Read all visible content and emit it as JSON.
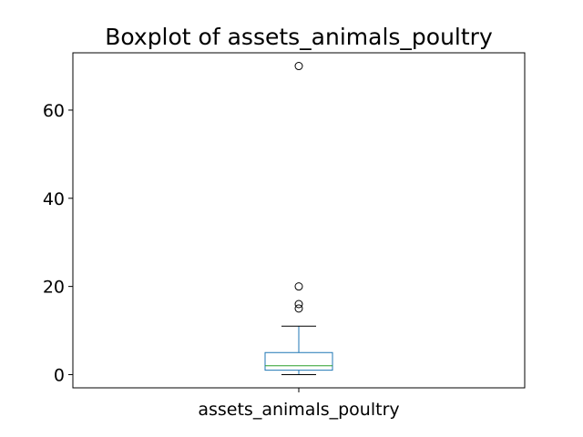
{
  "chart_data": {
    "type": "box",
    "title": "Boxplot of assets_animals_poultry",
    "xlabel": "",
    "ylabel": "",
    "categories": [
      "assets_animals_poultry"
    ],
    "ylim": [
      -3,
      73
    ],
    "yticks": [
      0,
      20,
      40,
      60
    ],
    "grid": false,
    "box": {
      "whisker_low": 0,
      "q1": 1,
      "median": 2,
      "q3": 5,
      "whisker_high": 11,
      "outliers": [
        15,
        16,
        20,
        70
      ]
    },
    "colors": {
      "box": "#1f77b4",
      "median": "#2ca02c",
      "whisker": "#1f77b4",
      "cap": "#000000",
      "flier": "#000000"
    }
  }
}
